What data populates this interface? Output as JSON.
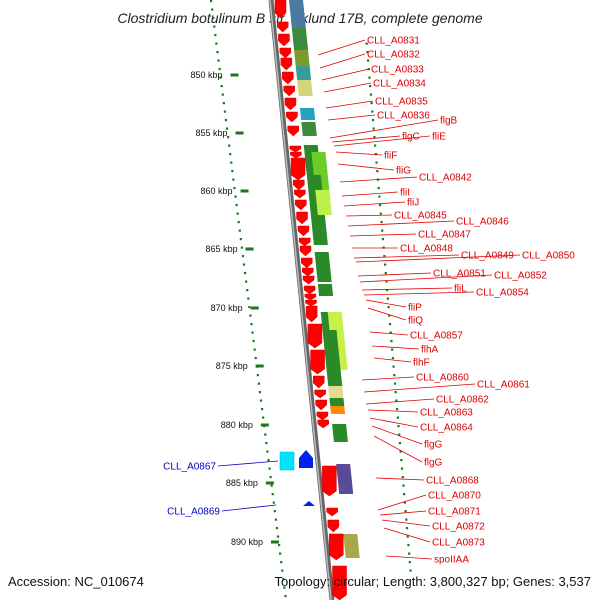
{
  "title": "Clostridium botulinum B str. Eklund 17B, complete genome",
  "footer": {
    "accession": "Accession: NC_010674",
    "topology": "Topology: circular; Length: 3,800,327 bp; Genes: 3,537"
  },
  "colors": {
    "forward_label": "#dd0000",
    "reverse_label": "#0000cc",
    "backbone": "#888888",
    "tick": "#1a7a1a"
  },
  "kbp_ticks": [
    "850 kbp",
    "855 kbp",
    "860 kbp",
    "865 kbp",
    "870 kbp",
    "875 kbp",
    "880 kbp",
    "885 kbp",
    "890 kbp"
  ],
  "labels_right": [
    "CLL_A0831",
    "CLL_A0832",
    "CLL_A0833",
    "CLL_A0834",
    "CLL_A0835",
    "CLL_A0836",
    "flgB",
    "flgC",
    "fliE",
    "fliF",
    "fliG",
    "CLL_A0842",
    "fliI",
    "fliJ",
    "CLL_A0845",
    "CLL_A0846",
    "CLL_A0847",
    "CLL_A0848",
    "CLL_A0849",
    "CLL_A0850",
    "CLL_A0851",
    "CLL_A0852",
    "fliL",
    "CLL_A0854",
    "fliP",
    "fliQ",
    "CLL_A0857",
    "flhA",
    "flhF",
    "CLL_A0860",
    "CLL_A0861",
    "CLL_A0862",
    "CLL_A0863",
    "CLL_A0864",
    "flgG",
    "flgG",
    "CLL_A0868",
    "CLL_A0870",
    "CLL_A0871",
    "CLL_A0872",
    "CLL_A0873",
    "spoIIAA"
  ],
  "labels_left": [
    "CLL_A0867",
    "CLL_A0869"
  ]
}
